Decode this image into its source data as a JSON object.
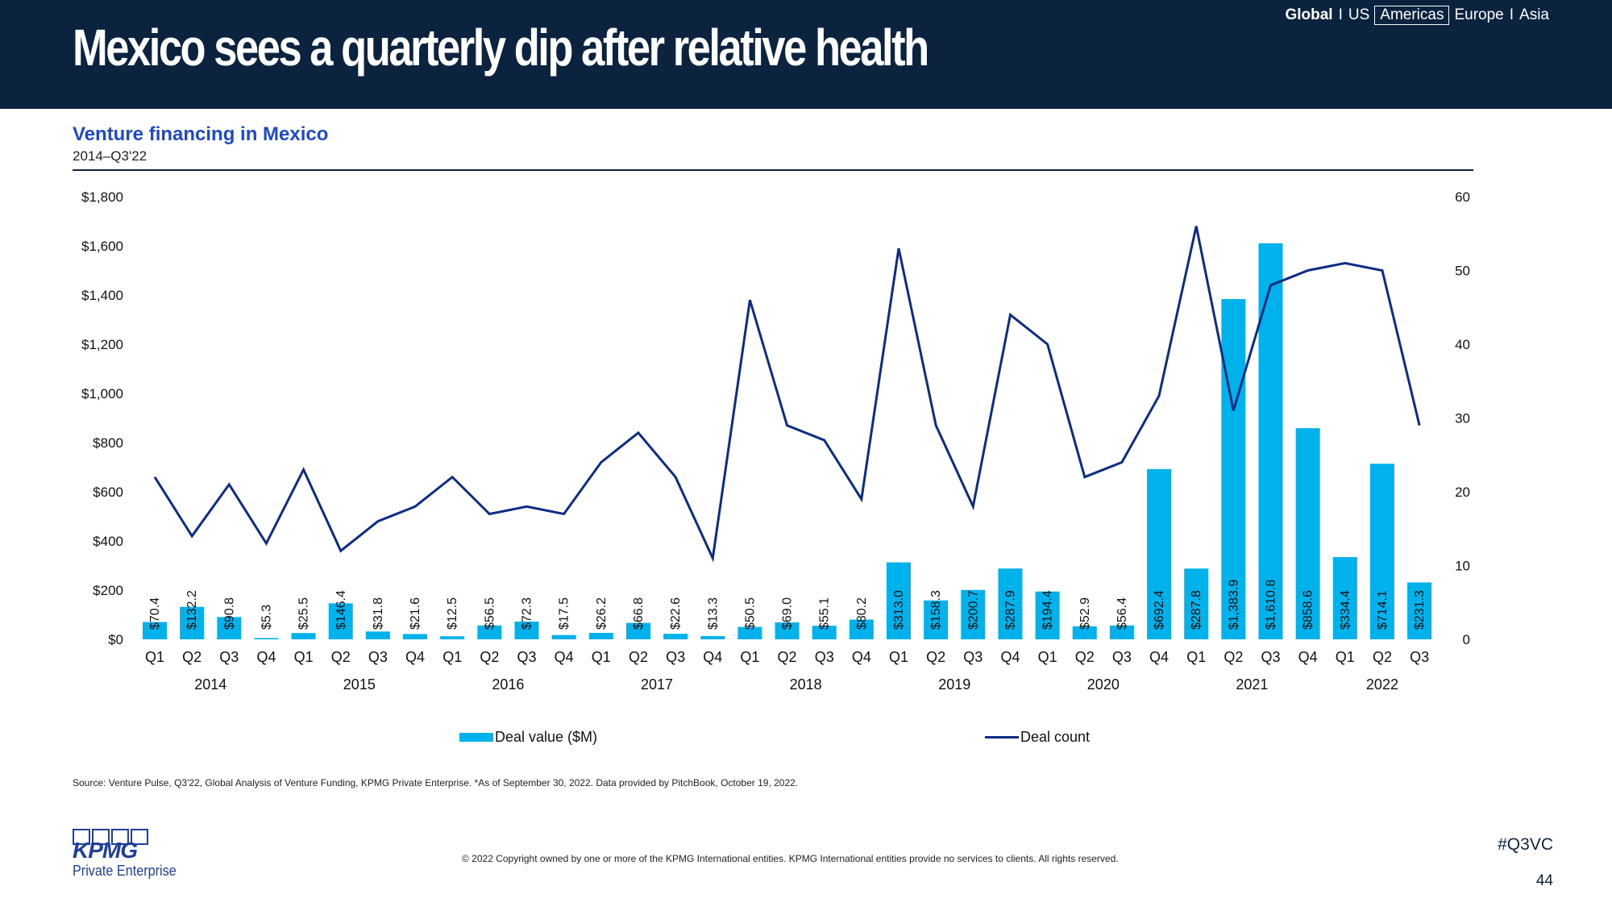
{
  "header": {
    "title": "Mexico sees a quarterly dip after relative health",
    "regions": [
      "Global",
      "US",
      "Americas",
      "Europe",
      "Asia"
    ],
    "active_region": "Americas",
    "separator": "I"
  },
  "chart_data": {
    "type": "bar",
    "title": "Venture financing in Mexico",
    "subtitle": "2014–Q3'22",
    "quarters": [
      "Q1",
      "Q2",
      "Q3",
      "Q4",
      "Q1",
      "Q2",
      "Q3",
      "Q4",
      "Q1",
      "Q2",
      "Q3",
      "Q4",
      "Q1",
      "Q2",
      "Q3",
      "Q4",
      "Q1",
      "Q2",
      "Q3",
      "Q4",
      "Q1",
      "Q2",
      "Q3",
      "Q4",
      "Q1",
      "Q2",
      "Q3",
      "Q4",
      "Q1",
      "Q2",
      "Q3",
      "Q4",
      "Q1",
      "Q2",
      "Q3"
    ],
    "years": [
      "2014",
      "2015",
      "2016",
      "2017",
      "2018",
      "2019",
      "2020",
      "2021",
      "2022"
    ],
    "series": [
      {
        "name": "Deal value ($M)",
        "kind": "bar",
        "axis": "left",
        "color": "#00b2ec",
        "values": [
          70.4,
          132.2,
          90.8,
          5.3,
          25.5,
          146.4,
          31.8,
          21.6,
          12.5,
          56.5,
          72.3,
          17.5,
          26.2,
          66.8,
          22.6,
          13.3,
          50.5,
          69.0,
          55.1,
          80.2,
          313.0,
          158.3,
          200.7,
          287.9,
          194.4,
          52.9,
          56.4,
          692.4,
          287.8,
          1383.9,
          1610.8,
          858.6,
          334.4,
          714.1,
          231.3
        ],
        "labels": [
          "$70.4",
          "$132.2",
          "$90.8",
          "$5.3",
          "$25.5",
          "$146.4",
          "$31.8",
          "$21.6",
          "$12.5",
          "$56.5",
          "$72.3",
          "$17.5",
          "$26.2",
          "$66.8",
          "$22.6",
          "$13.3",
          "$50.5",
          "$69.0",
          "$55.1",
          "$80.2",
          "$313.0",
          "$158.3",
          "$200.7",
          "$287.9",
          "$194.4",
          "$52.9",
          "$56.4",
          "$692.4",
          "$287.8",
          "$1,383.9",
          "$1,610.8",
          "$858.6",
          "$334.4",
          "$714.1",
          "$231.3"
        ]
      },
      {
        "name": "Deal count",
        "kind": "line",
        "axis": "right",
        "color": "#0c2d83",
        "values": [
          22,
          14,
          21,
          13,
          23,
          12,
          16,
          18,
          22,
          17,
          18,
          17,
          24,
          28,
          22,
          11,
          46,
          29,
          27,
          19,
          53,
          29,
          18,
          44,
          40,
          22,
          24,
          33,
          56,
          31,
          48,
          50,
          51,
          50,
          29
        ]
      }
    ],
    "y_left": {
      "min": 0,
      "max": 1800,
      "ticks": [
        "$0",
        "$200",
        "$400",
        "$600",
        "$800",
        "$1,000",
        "$1,200",
        "$1,400",
        "$1,600",
        "$1,800"
      ]
    },
    "y_right": {
      "min": 0,
      "max": 60,
      "ticks": [
        "0",
        "10",
        "20",
        "30",
        "40",
        "50",
        "60"
      ]
    },
    "grid": false,
    "legend_position": "bottom"
  },
  "legend": {
    "bar_label": "Deal value ($M)",
    "line_label": "Deal count"
  },
  "footer": {
    "source": "Source: Venture Pulse, Q3'22, Global Analysis of Venture Funding, KPMG Private Enterprise. *As of September 30, 2022. Data provided by PitchBook, October 19, 2022.",
    "copyright": "© 2022 Copyright owned by one or more of the KPMG International entities. KPMG International entities provide no services to clients. All rights reserved.",
    "logo_text": "KPMG",
    "logo_subtext": "Private Enterprise",
    "hashtag": "#Q3VC",
    "page_number": "44"
  }
}
